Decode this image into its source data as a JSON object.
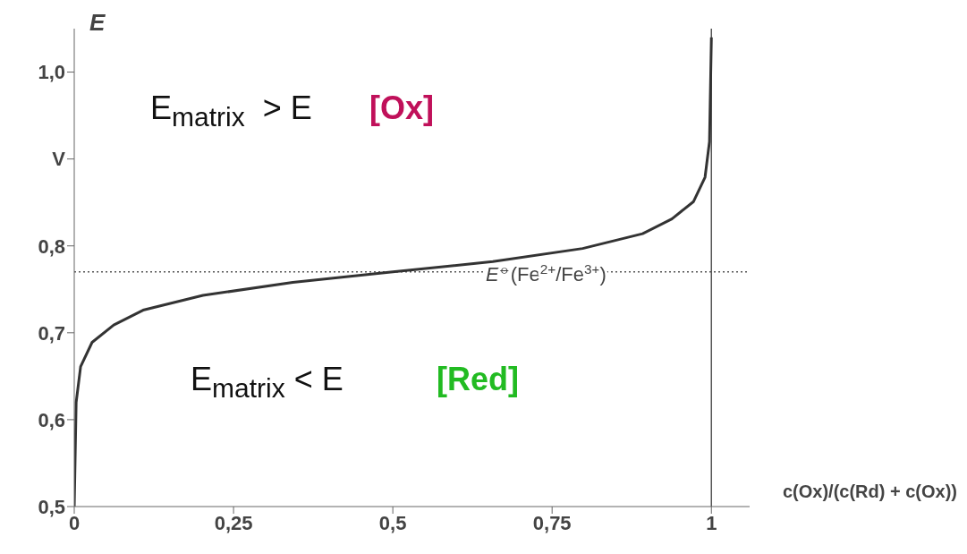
{
  "chart_data": {
    "type": "line",
    "ylabel": "E",
    "xlabel": "c(Ox)/(c(Rd) + c(Ox))",
    "x": [
      0,
      0.003,
      0.01,
      0.028,
      0.062,
      0.108,
      0.202,
      0.343,
      0.5,
      0.657,
      0.798,
      0.892,
      0.938,
      0.972,
      0.99,
      0.997,
      1
    ],
    "series": [
      {
        "color": "#333333",
        "values": [
          0.5,
          0.62,
          0.661,
          0.689,
          0.709,
          0.726,
          0.743,
          0.758,
          0.77,
          0.782,
          0.797,
          0.814,
          0.831,
          0.851,
          0.879,
          0.92,
          1.04
        ]
      }
    ],
    "xlim": [
      0,
      1.06
    ],
    "xticks": [
      0,
      {
        "value": 0.25,
        "label": "0,25"
      },
      {
        "value": 0.5,
        "label": "0,5"
      },
      {
        "value": 0.75,
        "label": "0,75"
      },
      1
    ],
    "ylim": [
      0.5,
      1.05
    ],
    "yticks": [
      {
        "value": 0.5,
        "label": "0,5"
      },
      {
        "value": 0.6,
        "label": "0,6"
      },
      {
        "value": 0.7,
        "label": "0,7"
      },
      {
        "value": 0.8,
        "label": "0,8"
      },
      {
        "value": 0.9,
        "label": "V"
      },
      {
        "value": 1.0,
        "label": "1,0"
      }
    ],
    "ref_lines": [
      {
        "axis": "y",
        "value": 0.77,
        "label": "E$^{⦵}$(Fe$^{2+}$/Fe$^{3+}$)",
        "color": "#555555",
        "line_style": "dotted"
      },
      {
        "axis": "x",
        "value": 1,
        "color": "#555555"
      }
    ],
    "annotations": [
      "E$_{matrix}$  > E",
      "[Ox]",
      "E$_{matrix}$ < E",
      "[Red]"
    ],
    "grid": false,
    "legend": false,
    "marker": "none",
    "line_style": "solid"
  }
}
